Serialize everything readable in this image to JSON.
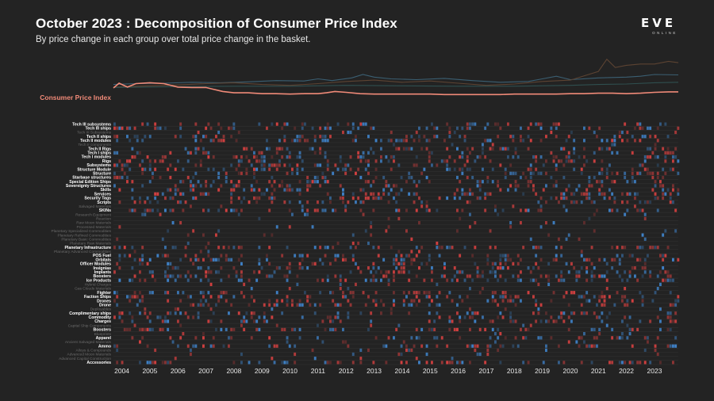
{
  "header": {
    "title": "October 2023 : Decomposition of Consumer Price Index",
    "subtitle": "By price change in each group over total price change in the basket."
  },
  "logo": {
    "word": "EVE",
    "sub": "ONLINE"
  },
  "colors": {
    "background": "#232323",
    "cpi_line": "#f08a78",
    "increase": "#d24040",
    "decrease": "#3f82c8",
    "bright_label": "#ffffff",
    "dim_label": "#6a6a6a",
    "grid": "#343434"
  },
  "chart_data": {
    "type": "heatmap",
    "title": "October 2023 : Decomposition of Consumer Price Index",
    "subtitle": "By price change in each group over total price change in the basket.",
    "x_range": [
      2003.7,
      2023.85
    ],
    "x_ticks": [
      "2004",
      "2005",
      "2006",
      "2007",
      "2008",
      "2009",
      "2010",
      "2011",
      "2012",
      "2013",
      "2014",
      "2015",
      "2016",
      "2017",
      "2018",
      "2019",
      "2020",
      "2021",
      "2022",
      "2023"
    ],
    "line_label": "Consumer Price Index",
    "cpi_series": {
      "x": [
        2003.7,
        2003.9,
        2004.2,
        2004.5,
        2005.0,
        2005.5,
        2006.0,
        2006.5,
        2007.0,
        2007.2,
        2007.6,
        2008.0,
        2008.5,
        2009.0,
        2009.5,
        2010.0,
        2010.5,
        2011.0,
        2011.3,
        2011.6,
        2012.0,
        2012.5,
        2013.0,
        2013.5,
        2014.0,
        2014.5,
        2015.0,
        2015.5,
        2016.0,
        2016.5,
        2017.0,
        2017.5,
        2018.0,
        2018.5,
        2019.0,
        2019.5,
        2020.0,
        2020.5,
        2021.0,
        2021.5,
        2022.0,
        2022.5,
        2023.0,
        2023.5,
        2023.85
      ],
      "y": [
        120,
        131,
        122,
        130,
        132,
        130,
        122,
        121,
        121,
        118,
        112,
        109,
        109,
        107,
        107,
        106,
        107,
        107,
        109,
        112,
        110,
        107,
        106,
        106,
        106,
        106,
        106,
        105,
        105,
        105,
        105,
        105,
        106,
        106,
        106,
        106,
        107,
        107,
        108,
        108,
        107,
        108,
        110,
        111,
        111
      ]
    },
    "context_series": [
      {
        "color": "#3b5f72",
        "x": [
          2003.7,
          2004.5,
          2005.5,
          2006.5,
          2007.5,
          2008.5,
          2009.5,
          2010.5,
          2011.0,
          2011.5,
          2012.2,
          2012.6,
          2013.0,
          2013.6,
          2014.5,
          2015.5,
          2016.5,
          2017.5,
          2018.5,
          2019.0,
          2019.5,
          2020.0,
          2021.0,
          2022.0,
          2022.5,
          2023.0,
          2023.85
        ],
        "y": [
          128,
          130,
          131,
          133,
          132,
          134,
          137,
          136,
          141,
          137,
          143,
          151,
          145,
          141,
          139,
          142,
          137,
          133,
          135,
          141,
          147,
          139,
          143,
          145,
          147,
          151,
          150
        ]
      },
      {
        "color": "#5c4332",
        "x": [
          2003.7,
          2005.0,
          2006.0,
          2007.0,
          2008.0,
          2009.0,
          2010.0,
          2011.0,
          2012.0,
          2013.0,
          2014.0,
          2015.0,
          2016.0,
          2017.0,
          2018.0,
          2019.0,
          2020.0,
          2020.6,
          2021.0,
          2021.3,
          2021.6,
          2022.0,
          2022.5,
          2023.0,
          2023.5,
          2023.85
        ],
        "y": [
          122,
          125,
          127,
          130,
          132,
          128,
          126,
          130,
          135,
          138,
          133,
          136,
          131,
          126,
          129,
          135,
          138,
          150,
          158,
          186,
          167,
          172,
          175,
          175,
          181,
          178
        ]
      },
      {
        "color": "#2f4f4f",
        "x": [
          2003.7,
          2006.0,
          2008.0,
          2010.0,
          2012.0,
          2014.0,
          2016.0,
          2018.0,
          2020.0,
          2021.0,
          2022.0,
          2023.0,
          2023.85
        ],
        "y": [
          121,
          123,
          124,
          124,
          126,
          125,
          124,
          124,
          126,
          128,
          129,
          132,
          133
        ]
      }
    ],
    "rows": [
      {
        "label": "Tech III subsystems",
        "b": 1
      },
      {
        "label": "Tech III ships",
        "b": 1
      },
      {
        "label": "Tech III Subsystems",
        "b": 0
      },
      {
        "label": "Tech II ships",
        "b": 1
      },
      {
        "label": "Tech II modules",
        "b": 1
      },
      {
        "label": "Tech II components",
        "b": 0
      },
      {
        "label": "Tech II Rigs",
        "b": 1
      },
      {
        "label": "Tech I ships",
        "b": 1
      },
      {
        "label": "Tech I modules",
        "b": 1
      },
      {
        "label": "Rigs",
        "b": 1
      },
      {
        "label": "Subsystems",
        "b": 1
      },
      {
        "label": "Structure Module",
        "b": 1
      },
      {
        "label": "Structure",
        "b": 1
      },
      {
        "label": "Starbase structures",
        "b": 1
      },
      {
        "label": "Special Edition Ships",
        "b": 1
      },
      {
        "label": "Sovereignty Structures",
        "b": 1
      },
      {
        "label": "Skills",
        "b": 1
      },
      {
        "label": "Services",
        "b": 1
      },
      {
        "label": "Security Tags",
        "b": 1
      },
      {
        "label": "Scripts",
        "b": 1
      },
      {
        "label": "Salvaged Materials",
        "b": 0
      },
      {
        "label": "SKINs",
        "b": 1
      },
      {
        "label": "Research Equipment",
        "b": 0
      },
      {
        "label": "Reaction",
        "b": 0
      },
      {
        "label": "Raw Moon Materials",
        "b": 0
      },
      {
        "label": "Processed Materials",
        "b": 0
      },
      {
        "label": "Planetary Specialized Commodities",
        "b": 0
      },
      {
        "label": "Planetary Refined Commodities",
        "b": 0
      },
      {
        "label": "Planetary Basic Commodities",
        "b": 0
      },
      {
        "label": "Planetary Raw Materials",
        "b": 0
      },
      {
        "label": "Planetary Infrastructure",
        "b": 1
      },
      {
        "label": "Planetary Advanced Commodities",
        "b": 0
      },
      {
        "label": "POS Fuel",
        "b": 1
      },
      {
        "label": "Orbitals",
        "b": 1
      },
      {
        "label": "Officer Modules",
        "b": 1
      },
      {
        "label": "Insignias",
        "b": 1
      },
      {
        "label": "Implants",
        "b": 1
      },
      {
        "label": "Boosters",
        "b": 1
      },
      {
        "label": "Ice Products",
        "b": 1
      },
      {
        "label": "Hybrid Charges",
        "b": 0
      },
      {
        "label": "Gas Clouds Materials",
        "b": 0
      },
      {
        "label": "Fighter",
        "b": 1
      },
      {
        "label": "Faction Ships",
        "b": 1
      },
      {
        "label": "Drones",
        "b": 1
      },
      {
        "label": "Drone",
        "b": 1
      },
      {
        "label": "Deployables",
        "b": 0
      },
      {
        "label": "Complimentary ships",
        "b": 1
      },
      {
        "label": "Commodity",
        "b": 1
      },
      {
        "label": "Charges",
        "b": 1
      },
      {
        "label": "Capital Ship Components",
        "b": 0
      },
      {
        "label": "Boosters",
        "b": 1
      },
      {
        "label": "Blueprints",
        "b": 0
      },
      {
        "label": "Apparel",
        "b": 1
      },
      {
        "label": "Ancient Salvaged Materials",
        "b": 0
      },
      {
        "label": "Ammo",
        "b": 1
      },
      {
        "label": "Alloys & Compounds",
        "b": 0
      },
      {
        "label": "Advanced Moon Materials",
        "b": 0
      },
      {
        "label": "Advanced Capital Construction",
        "b": 0
      },
      {
        "label": "Accessories",
        "b": 1
      }
    ]
  }
}
